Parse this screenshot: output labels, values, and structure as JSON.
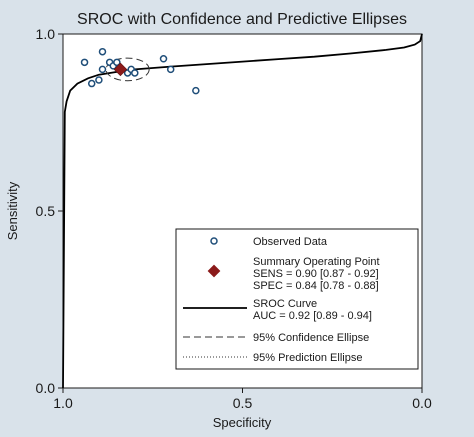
{
  "chart_data": {
    "type": "scatter",
    "title": "SROC with Confidence and Predictive Ellipses",
    "xlabel": "Specificity",
    "ylabel": "Sensitivity",
    "x_reversed": true,
    "xlim": [
      1.0,
      0.0
    ],
    "ylim": [
      0.0,
      1.0
    ],
    "x_ticks": [
      "1.0",
      "0.5",
      "0.0"
    ],
    "y_ticks": [
      "0.0",
      "0.5",
      "1.0"
    ],
    "grid": false,
    "legend_position": "bottom-right",
    "observed_points": [
      {
        "spec": 0.94,
        "sens": 0.92
      },
      {
        "spec": 0.92,
        "sens": 0.86
      },
      {
        "spec": 0.9,
        "sens": 0.87
      },
      {
        "spec": 0.89,
        "sens": 0.95
      },
      {
        "spec": 0.89,
        "sens": 0.9
      },
      {
        "spec": 0.87,
        "sens": 0.92
      },
      {
        "spec": 0.86,
        "sens": 0.91
      },
      {
        "spec": 0.85,
        "sens": 0.92
      },
      {
        "spec": 0.82,
        "sens": 0.89
      },
      {
        "spec": 0.81,
        "sens": 0.9
      },
      {
        "spec": 0.8,
        "sens": 0.89
      },
      {
        "spec": 0.72,
        "sens": 0.93
      },
      {
        "spec": 0.7,
        "sens": 0.9
      },
      {
        "spec": 0.63,
        "sens": 0.84
      }
    ],
    "summary_point": {
      "spec": 0.84,
      "sens": 0.9
    },
    "confidence_ellipse": {
      "center_spec": 0.82,
      "center_sens": 0.9,
      "half_width_spec": 0.06,
      "half_height_sens": 0.032
    },
    "sroc_curve": [
      {
        "spec": 1.0,
        "sens": 0.0
      },
      {
        "spec": 0.995,
        "sens": 0.78
      },
      {
        "spec": 0.99,
        "sens": 0.81
      },
      {
        "spec": 0.98,
        "sens": 0.84
      },
      {
        "spec": 0.96,
        "sens": 0.86
      },
      {
        "spec": 0.93,
        "sens": 0.875
      },
      {
        "spec": 0.9,
        "sens": 0.885
      },
      {
        "spec": 0.85,
        "sens": 0.893
      },
      {
        "spec": 0.8,
        "sens": 0.9
      },
      {
        "spec": 0.7,
        "sens": 0.908
      },
      {
        "spec": 0.6,
        "sens": 0.915
      },
      {
        "spec": 0.5,
        "sens": 0.922
      },
      {
        "spec": 0.4,
        "sens": 0.929
      },
      {
        "spec": 0.3,
        "sens": 0.936
      },
      {
        "spec": 0.2,
        "sens": 0.945
      },
      {
        "spec": 0.1,
        "sens": 0.955
      },
      {
        "spec": 0.05,
        "sens": 0.962
      },
      {
        "spec": 0.02,
        "sens": 0.97
      },
      {
        "spec": 0.005,
        "sens": 0.98
      },
      {
        "spec": 0.0,
        "sens": 1.0
      }
    ],
    "colors": {
      "panel_background": "#d9e2ea",
      "plot_background": "#ffffff",
      "observed_marker": "#1f4e79",
      "summary_marker": "#8b1a1a",
      "curve": "#000000"
    },
    "legend": {
      "observed": "Observed Data",
      "summary_title": "Summary Operating Point",
      "summary_sens": "SENS = 0.90 [0.87 - 0.92]",
      "summary_spec": "SPEC = 0.84 [0.78 - 0.88]",
      "sroc_title": "SROC Curve",
      "sroc_auc": "AUC = 0.92 [0.89 - 0.94]",
      "confidence": "95% Confidence Ellipse",
      "prediction": "95% Prediction Ellipse"
    }
  }
}
